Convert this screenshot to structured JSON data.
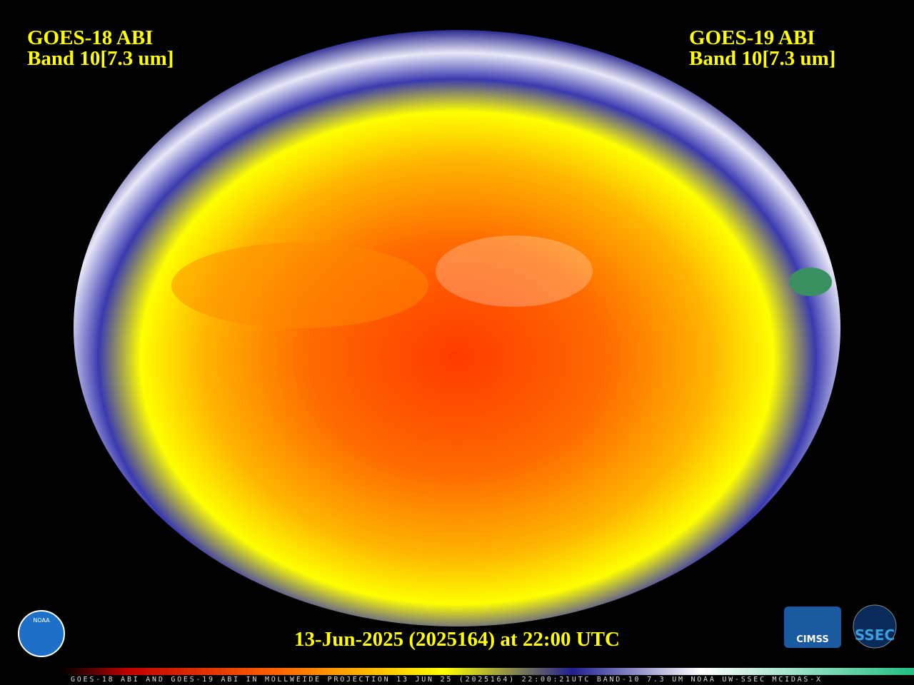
{
  "header": {
    "left": {
      "line1": "GOES-18 ABI",
      "line2": "Band 10[7.3 um]"
    },
    "right": {
      "line1": "GOES-19 ABI",
      "line2": "Band 10[7.3 um]"
    }
  },
  "timestamp": "13-Jun-2025 (2025164) at 22:00 UTC",
  "colorbar_caption": "GOES-18 ABI AND GOES-19 ABI IN MOLLWEIDE PROJECTION 13 JUN 25 (2025164) 22:00:21UTC BAND-10 7.3 UM NOAA UW-SSEC MCIDAS-X",
  "logos": {
    "noaa": "NOAA",
    "cimss": "CIMSS",
    "ssec": "SSEC"
  }
}
